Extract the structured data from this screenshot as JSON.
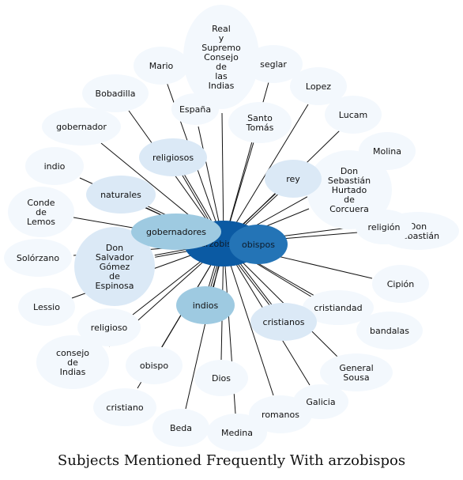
{
  "title": "Subjects Mentioned Frequently With arzobispos",
  "colors": {
    "edge": "#111111",
    "center": "#0b5aa3",
    "strong": "#2474b6",
    "medium": "#9ecae1",
    "light": "#dbe9f6",
    "faint": "#f3f8fd"
  },
  "center": {
    "id": "arzobispos",
    "label": "arzobispos"
  },
  "nodes": [
    {
      "id": "real-supremo-consejo",
      "label": "Real\ny\nSupremo\nConsejo\nde\nlas\nIndias",
      "tone": "faint"
    },
    {
      "id": "mario",
      "label": "Mario",
      "tone": "faint"
    },
    {
      "id": "seglar",
      "label": "seglar",
      "tone": "faint"
    },
    {
      "id": "bobadilla",
      "label": "Bobadilla",
      "tone": "faint"
    },
    {
      "id": "lopez",
      "label": "Lopez",
      "tone": "faint"
    },
    {
      "id": "espana",
      "label": "España",
      "tone": "faint"
    },
    {
      "id": "santo-tomas",
      "label": "Santo\nTomás",
      "tone": "faint"
    },
    {
      "id": "lucam",
      "label": "Lucam",
      "tone": "faint"
    },
    {
      "id": "gobernador",
      "label": "gobernador",
      "tone": "faint"
    },
    {
      "id": "religiosos",
      "label": "religiosos",
      "tone": "light"
    },
    {
      "id": "molina",
      "label": "Molina",
      "tone": "faint"
    },
    {
      "id": "indio",
      "label": "indio",
      "tone": "faint"
    },
    {
      "id": "don-sebastian-hurtado",
      "label": "Don\nSebastián\nHurtado\nde\nCorcuera",
      "tone": "faint"
    },
    {
      "id": "rey",
      "label": "rey",
      "tone": "light"
    },
    {
      "id": "naturales",
      "label": "naturales",
      "tone": "light"
    },
    {
      "id": "conde-lemos",
      "label": "Conde\nde\nLemos",
      "tone": "faint"
    },
    {
      "id": "don-sebastian",
      "label": "Don\nSebastián",
      "tone": "faint"
    },
    {
      "id": "religion",
      "label": "religión",
      "tone": "faint"
    },
    {
      "id": "gobernadores",
      "label": "gobernadores",
      "tone": "medium"
    },
    {
      "id": "obispos",
      "label": "obispos",
      "tone": "strong"
    },
    {
      "id": "solorzano",
      "label": "Solórzano",
      "tone": "faint"
    },
    {
      "id": "don-salvador",
      "label": "Don\nSalvador\nGómez\nde\nEspinosa",
      "tone": "light"
    },
    {
      "id": "cipion",
      "label": "Cipión",
      "tone": "faint"
    },
    {
      "id": "lessio",
      "label": "Lessio",
      "tone": "faint"
    },
    {
      "id": "indios",
      "label": "indios",
      "tone": "medium"
    },
    {
      "id": "cristiandad",
      "label": "cristiandad",
      "tone": "faint"
    },
    {
      "id": "religioso",
      "label": "religioso",
      "tone": "faint"
    },
    {
      "id": "cristianos",
      "label": "cristianos",
      "tone": "light"
    },
    {
      "id": "bandalas",
      "label": "bandalas",
      "tone": "faint"
    },
    {
      "id": "consejo-indias",
      "label": "consejo\nde\nIndias",
      "tone": "faint"
    },
    {
      "id": "obispo",
      "label": "obispo",
      "tone": "faint"
    },
    {
      "id": "general-sousa",
      "label": "General\nSousa",
      "tone": "faint"
    },
    {
      "id": "dios",
      "label": "Dios",
      "tone": "faint"
    },
    {
      "id": "cristiano",
      "label": "cristiano",
      "tone": "faint"
    },
    {
      "id": "galicia",
      "label": "Galicia",
      "tone": "faint"
    },
    {
      "id": "romanos",
      "label": "romanos",
      "tone": "faint"
    },
    {
      "id": "beda",
      "label": "Beda",
      "tone": "faint"
    },
    {
      "id": "medina",
      "label": "Medina",
      "tone": "faint"
    }
  ],
  "edges": [
    {
      "to": "real-supremo-consejo",
      "count": 1
    },
    {
      "to": "mario",
      "count": 1
    },
    {
      "to": "seglar",
      "count": 1
    },
    {
      "to": "bobadilla",
      "count": 1
    },
    {
      "to": "lopez",
      "count": 1
    },
    {
      "to": "espana",
      "count": 1
    },
    {
      "to": "santo-tomas",
      "count": 1
    },
    {
      "to": "lucam",
      "count": 1
    },
    {
      "to": "gobernador",
      "count": 1
    },
    {
      "to": "religiosos",
      "count": 2
    },
    {
      "to": "molina",
      "count": 1
    },
    {
      "to": "indio",
      "count": 1
    },
    {
      "to": "don-sebastian-hurtado",
      "count": 1
    },
    {
      "to": "rey",
      "count": 2
    },
    {
      "to": "naturales",
      "count": 2
    },
    {
      "to": "conde-lemos",
      "count": 1
    },
    {
      "to": "don-sebastian",
      "count": 1
    },
    {
      "to": "religion",
      "count": 1
    },
    {
      "to": "gobernadores",
      "count": 3
    },
    {
      "to": "obispos",
      "count": 4
    },
    {
      "to": "solorzano",
      "count": 1
    },
    {
      "to": "don-salvador",
      "count": 2
    },
    {
      "to": "cipion",
      "count": 1
    },
    {
      "to": "lessio",
      "count": 1
    },
    {
      "to": "indios",
      "count": 3
    },
    {
      "to": "cristiandad",
      "count": 1
    },
    {
      "to": "religioso",
      "count": 1
    },
    {
      "to": "cristianos",
      "count": 2
    },
    {
      "to": "bandalas",
      "count": 1
    },
    {
      "to": "consejo-indias",
      "count": 1
    },
    {
      "to": "obispo",
      "count": 1
    },
    {
      "to": "general-sousa",
      "count": 1
    },
    {
      "to": "dios",
      "count": 1
    },
    {
      "to": "cristiano",
      "count": 1
    },
    {
      "to": "galicia",
      "count": 1
    },
    {
      "to": "romanos",
      "count": 1
    },
    {
      "to": "beda",
      "count": 1
    },
    {
      "to": "medina",
      "count": 1
    }
  ]
}
